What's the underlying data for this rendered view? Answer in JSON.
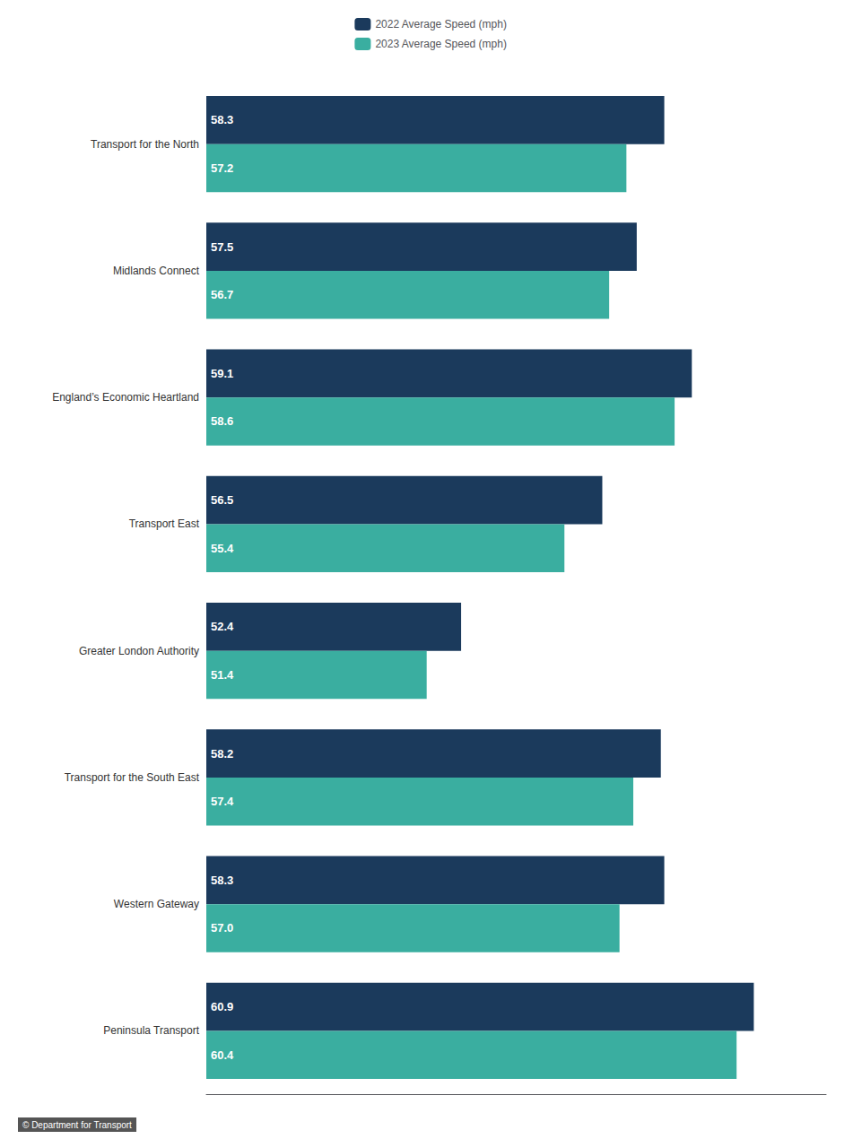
{
  "chart_data": {
    "type": "bar",
    "orientation": "horizontal",
    "categories": [
      "Peninsula Transport",
      "Western Gateway",
      "Transport for the South East",
      "Greater London Authority",
      "Transport East",
      "England’s Economic Heartland",
      "Midlands Connect",
      "Transport for the North"
    ],
    "series": [
      {
        "name": "2022 Average Speed (mph)",
        "color": "#1b3a5c",
        "values": [
          60.9,
          58.3,
          58.2,
          52.4,
          56.5,
          59.1,
          57.5,
          58.3
        ],
        "value_labels": [
          "60.9",
          "58.3",
          "58.2",
          "52.4",
          "56.5",
          "59.1",
          "57.5",
          "58.3"
        ]
      },
      {
        "name": "2023 Average Speed (mph)",
        "color": "#3aaea0",
        "values": [
          60.4,
          57.0,
          57.4,
          51.4,
          55.4,
          58.6,
          56.7,
          57.2
        ],
        "value_labels": [
          "60.4",
          "57.0",
          "57.4",
          "51.4",
          "55.4",
          "58.6",
          "56.7",
          "57.2"
        ]
      }
    ],
    "xlim": [
      45,
      63
    ],
    "data_labels": true,
    "legend": "top",
    "grid": false,
    "tick_labels": "y",
    "annotations": [
      "© Department for Transport"
    ]
  }
}
